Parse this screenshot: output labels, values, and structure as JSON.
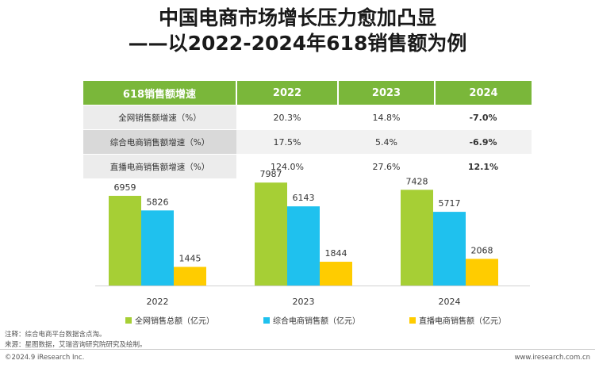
{
  "title": {
    "line1": "中国电商市场增长压力愈加凸显",
    "line2": "——以2022-2024年618销售额为例"
  },
  "table": {
    "header": [
      "618销售额增速",
      "2022",
      "2023",
      "2024"
    ],
    "rows": [
      {
        "label": "全网销售额增速（%）",
        "values": [
          "20.3%",
          "14.8%",
          "-7.0%"
        ]
      },
      {
        "label": "综合电商销售额增速（%）",
        "values": [
          "17.5%",
          "5.4%",
          "-6.9%"
        ]
      },
      {
        "label": "直播电商销售额增速（%）",
        "values": [
          "124.0%",
          "27.6%",
          "12.1%"
        ]
      }
    ]
  },
  "chart_data": {
    "type": "bar",
    "categories": [
      "2022",
      "2023",
      "2024"
    ],
    "series": [
      {
        "name": "全网销售总额（亿元）",
        "values": [
          6959,
          7987,
          7428
        ],
        "color": "#a6cf35"
      },
      {
        "name": "综合电商销售额（亿元）",
        "values": [
          5826,
          6143,
          5717
        ],
        "color": "#1fc1ee"
      },
      {
        "name": "直播电商销售额（亿元）",
        "values": [
          1445,
          1844,
          2068
        ],
        "color": "#ffcc00"
      }
    ],
    "title": "",
    "xlabel": "",
    "ylabel": "",
    "ylim": [
      0,
      8000
    ],
    "grid": false,
    "legend": "bottom"
  },
  "notes": {
    "note": "注释：综合电商平台数据含点淘。",
    "source": "来源：星图数据，艾瑞咨询研究院研究及绘制。"
  },
  "footer": {
    "copyright": "©2024.9 iResearch Inc.",
    "website": "www.iresearch.com.cn"
  }
}
